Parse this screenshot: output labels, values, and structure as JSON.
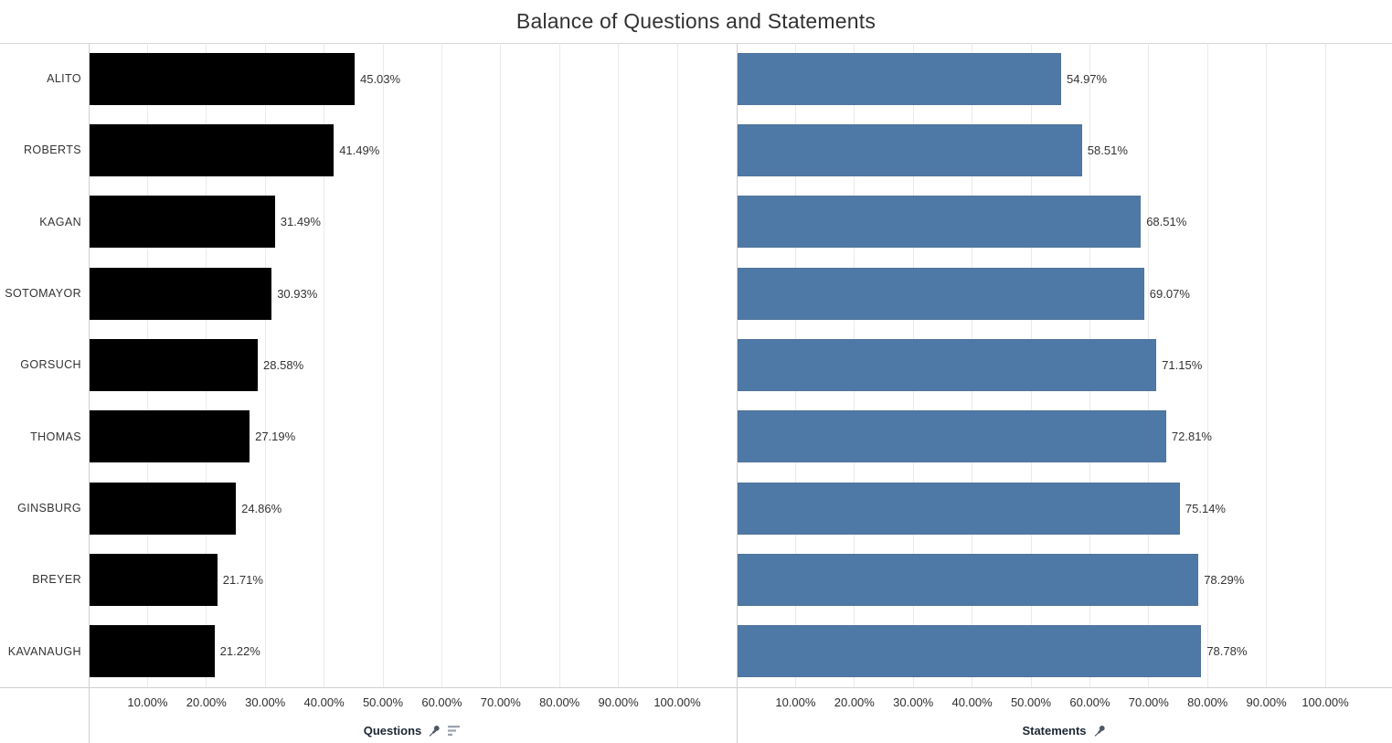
{
  "title": "Balance of Questions and Statements",
  "chart_data": {
    "type": "bar",
    "orientation": "horizontal",
    "title": "Balance of Questions and Statements",
    "categories": [
      "ALITO",
      "ROBERTS",
      "KAGAN",
      "SOTOMAYOR",
      "GORSUCH",
      "THOMAS",
      "GINSBURG",
      "BREYER",
      "KAVANAUGH"
    ],
    "series": [
      {
        "name": "Questions",
        "color": "#000000",
        "values": [
          45.03,
          41.49,
          31.49,
          30.93,
          28.58,
          27.19,
          24.86,
          21.71,
          21.22
        ],
        "labels": [
          "45.03%",
          "41.49%",
          "31.49%",
          "30.93%",
          "28.58%",
          "27.19%",
          "24.86%",
          "21.71%",
          "21.22%"
        ]
      },
      {
        "name": "Statements",
        "color": "#4e79a7",
        "values": [
          54.97,
          58.51,
          68.51,
          69.07,
          71.15,
          72.81,
          75.14,
          78.29,
          78.78
        ],
        "labels": [
          "54.97%",
          "58.51%",
          "68.51%",
          "69.07%",
          "71.15%",
          "72.81%",
          "75.14%",
          "78.29%",
          "78.78%"
        ]
      }
    ],
    "x_tick_labels": [
      "10.00%",
      "20.00%",
      "30.00%",
      "40.00%",
      "50.00%",
      "60.00%",
      "70.00%",
      "80.00%",
      "90.00%",
      "100.00%"
    ],
    "axis_range": [
      0,
      100
    ],
    "grid": true,
    "value_labels_shown": true,
    "legend": "none"
  },
  "panes": [
    {
      "axis_title": "Questions",
      "icons": [
        "pin-icon",
        "sort-descending-icon"
      ]
    },
    {
      "axis_title": "Statements",
      "icons": [
        "pin-icon"
      ]
    }
  ],
  "colors": {
    "questions_bar": "#000000",
    "statements_bar": "#4e79a7",
    "gridline": "#eaeaea",
    "divider": "#cfcfcf",
    "text": "#333333"
  }
}
